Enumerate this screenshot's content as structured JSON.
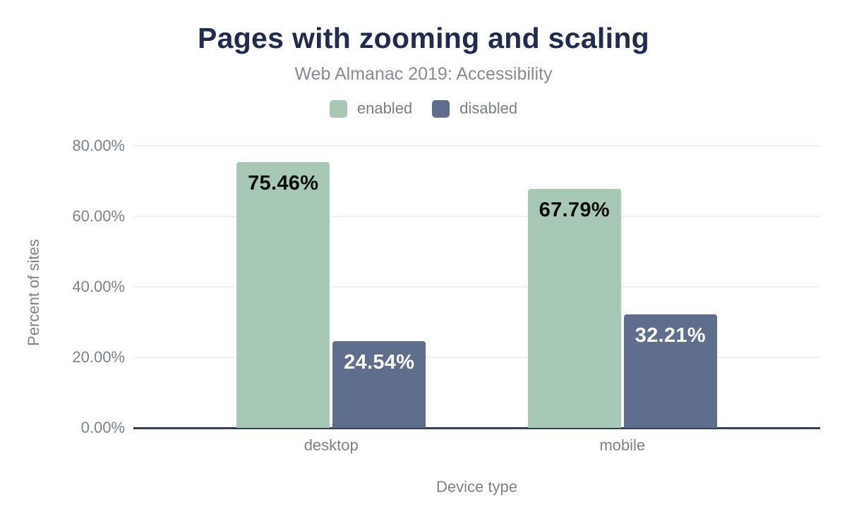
{
  "chart_data": {
    "type": "bar",
    "title": "Pages with zooming and scaling",
    "subtitle": "Web Almanac 2019: Accessibility",
    "xlabel": "Device type",
    "ylabel": "Percent of sites",
    "categories": [
      "desktop",
      "mobile"
    ],
    "series": [
      {
        "name": "enabled",
        "color": "#a6c8b5",
        "label_color": "#0c0c0c",
        "values": [
          75.46,
          67.79
        ],
        "labels": [
          "75.46%",
          "67.79%"
        ]
      },
      {
        "name": "disabled",
        "color": "#5e6e8c",
        "label_color": "#ffffff",
        "values": [
          24.54,
          32.21
        ],
        "labels": [
          "24.54%",
          "32.21%"
        ]
      }
    ],
    "ylim": [
      0,
      80
    ],
    "yticks": [
      {
        "value": 0,
        "label": "0.00%"
      },
      {
        "value": 20,
        "label": "20.00%"
      },
      {
        "value": 40,
        "label": "40.00%"
      },
      {
        "value": 60,
        "label": "60.00%"
      },
      {
        "value": 80,
        "label": "80.00%"
      }
    ],
    "grid": true,
    "legend_position": "top"
  },
  "colors": {
    "title": "#202c4f",
    "subtitle_text": "#858c94",
    "axis_line": "#33415a",
    "gridline": "#eff0f2",
    "muted_text": "#7b838b",
    "series_enabled": "#a6c8b5",
    "series_disabled": "#5e6e8c"
  }
}
